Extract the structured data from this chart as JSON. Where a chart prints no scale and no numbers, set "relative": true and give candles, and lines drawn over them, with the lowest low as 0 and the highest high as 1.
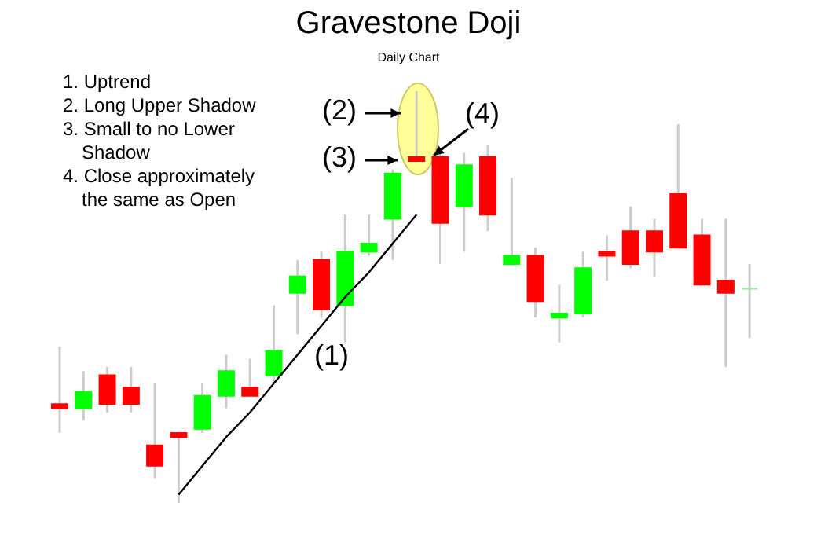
{
  "chart_data": {
    "type": "candlestick",
    "title": "Gravestone Doji",
    "subtitle": "Daily Chart",
    "relative": true,
    "categories": [
      null,
      null,
      null,
      null,
      null,
      null,
      null,
      null,
      null,
      null,
      null,
      null,
      null,
      null,
      null,
      null,
      null,
      null,
      null,
      null,
      null,
      null,
      null,
      null,
      null,
      null,
      null,
      null,
      null,
      null
    ],
    "ohlc": [
      [
        0.24,
        0.38,
        0.17,
        0.23
      ],
      [
        0.23,
        0.32,
        0.2,
        0.27
      ],
      [
        0.31,
        0.33,
        0.22,
        0.24
      ],
      [
        0.28,
        0.33,
        0.22,
        0.24
      ],
      [
        0.14,
        0.29,
        0.06,
        0.09
      ],
      [
        0.17,
        0.17,
        0,
        0.16
      ],
      [
        0.18,
        0.29,
        0.17,
        0.26
      ],
      [
        0.26,
        0.36,
        0.23,
        0.32
      ],
      [
        0.28,
        0.35,
        0.26,
        0.26
      ],
      [
        0.31,
        0.48,
        0.29,
        0.37
      ],
      [
        0.51,
        0.59,
        0.41,
        0.55
      ],
      [
        0.59,
        0.61,
        0.45,
        0.47
      ],
      [
        0.48,
        0.7,
        0.39,
        0.61
      ],
      [
        0.61,
        0.7,
        0.6,
        0.63
      ],
      [
        0.69,
        0.81,
        0.59,
        0.8
      ],
      [
        0.84,
        1,
        0.83,
        0.83
      ],
      [
        0.84,
        0.85,
        0.58,
        0.68
      ],
      [
        0.72,
        0.85,
        0.61,
        0.82
      ],
      [
        0.84,
        0.87,
        0.66,
        0.7
      ],
      [
        0.58,
        0.79,
        0.58,
        0.6
      ],
      [
        0.6,
        0.62,
        0.45,
        0.49
      ],
      [
        0.45,
        0.53,
        0.39,
        0.46
      ],
      [
        0.46,
        0.61,
        0.45,
        0.57
      ],
      [
        0.61,
        0.65,
        0.54,
        0.6
      ],
      [
        0.66,
        0.72,
        0.57,
        0.58
      ],
      [
        0.66,
        0.69,
        0.55,
        0.61
      ],
      [
        0.75,
        0.92,
        0.62,
        0.62
      ],
      [
        0.65,
        0.69,
        0.53,
        0.53
      ],
      [
        0.54,
        0.69,
        0.33,
        0.51
      ],
      [
        0.52,
        0.58,
        0.4,
        0.52
      ]
    ],
    "colors": [
      "#ff0000",
      "#00ff00",
      "#ff0000",
      "#ff0000",
      "#ff0000",
      "#ff0000",
      "#00ff00",
      "#00ff00",
      "#ff0000",
      "#00ff00",
      "#00ff00",
      "#ff0000",
      "#00ff00",
      "#00ff00",
      "#00ff00",
      "#ff0000",
      "#ff0000",
      "#00ff00",
      "#ff0000",
      "#00ff00",
      "#ff0000",
      "#00ff00",
      "#00ff00",
      "#ff0000",
      "#ff0000",
      "#ff0000",
      "#ff0000",
      "#ff0000",
      "#ff0000",
      "#99ee99"
    ],
    "series": [
      {
        "type": "line",
        "values": [
          null,
          null,
          null,
          null,
          null,
          0.02,
          0.09,
          0.16,
          0.22,
          0.29,
          0.36,
          0.43,
          0.5,
          0.56,
          0.63,
          0.7,
          null,
          null,
          null,
          null,
          null,
          null,
          null,
          null,
          null,
          null,
          null,
          null,
          null,
          null
        ],
        "color": "#000000"
      }
    ],
    "annotations": [
      "1. Uptrend",
      "2. Long Upper Shadow",
      "3. Small to no Lower Shadow",
      "4. Close approximately the same as Open",
      "(2)",
      "(3)",
      "(4)",
      "(1)"
    ]
  }
}
